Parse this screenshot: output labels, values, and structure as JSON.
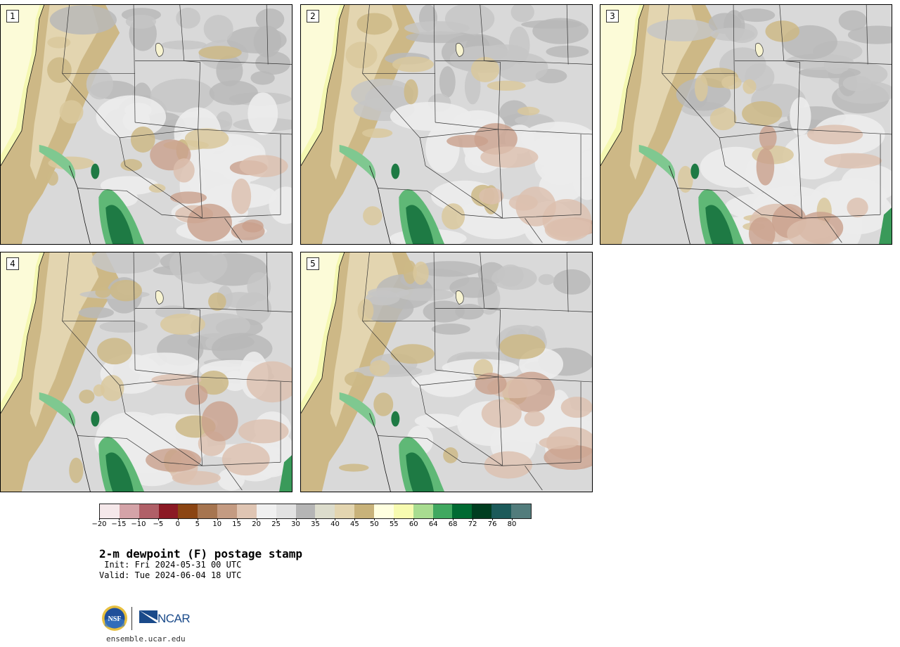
{
  "panels": [
    {
      "label": "1",
      "variant": 0
    },
    {
      "label": "2",
      "variant": 1
    },
    {
      "label": "3",
      "variant": 2
    },
    {
      "label": "4",
      "variant": 3
    },
    {
      "label": "5",
      "variant": 4
    }
  ],
  "colorbar": {
    "colors": [
      "#f5e8ea",
      "#d4a3a8",
      "#b06068",
      "#8b1a25",
      "#8b4513",
      "#a67550",
      "#c49b82",
      "#dfc5b3",
      "#f0f0f0",
      "#e2e2e2",
      "#b5b5b5",
      "#dcdccc",
      "#e3d5b0",
      "#c8b27a",
      "#ffffe0",
      "#f7fbb0",
      "#a8dc90",
      "#40a860",
      "#006a32",
      "#003d20",
      "#1c5a5a",
      "#527c7c"
    ],
    "tick_labels": [
      "−20",
      "−15",
      "−10",
      "−5",
      "0",
      "5",
      "10",
      "15",
      "20",
      "25",
      "30",
      "35",
      "40",
      "45",
      "50",
      "55",
      "60",
      "64",
      "68",
      "72",
      "76",
      "80"
    ]
  },
  "title": "2-m dewpoint (F) postage stamp",
  "init": " Init: Fri 2024-05-31 00 UTC",
  "valid": "Valid: Tue 2024-06-04 18 UTC",
  "logo": {
    "nsf_text": "NSF",
    "ncar_text": "NCAR"
  },
  "site_url": "ensemble.ucar.edu"
}
